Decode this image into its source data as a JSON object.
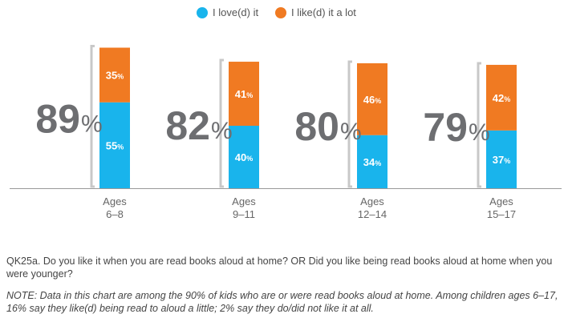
{
  "legend": {
    "love_label": "I love(d) it",
    "like_label": "I like(d) it a lot"
  },
  "chart_data": {
    "type": "bar",
    "stacked": true,
    "categories": [
      "Ages\n6–8",
      "Ages\n9–11",
      "Ages\n12–14",
      "Ages\n15–17"
    ],
    "series": [
      {
        "name": "I love(d) it",
        "color": "#19b4ec",
        "values": [
          55,
          40,
          34,
          37
        ]
      },
      {
        "name": "I like(d) it a lot",
        "color": "#f07a22",
        "values": [
          35,
          41,
          46,
          42
        ]
      }
    ],
    "totals": [
      89,
      82,
      80,
      79
    ],
    "value_suffix": "%",
    "ylim": [
      0,
      100
    ],
    "grid": false,
    "legend_position": "top-center"
  },
  "footer": {
    "question": "QK25a. Do you like it when you are read books aloud at home? OR Did you like being read books aloud at home when you were younger?",
    "note": "NOTE: Data in this chart are among the 90% of kids who are or were read books aloud at home. Among children ages 6–17, 16% say they like(d) being read to aloud a little; 2% say they do/did not like it at all."
  }
}
